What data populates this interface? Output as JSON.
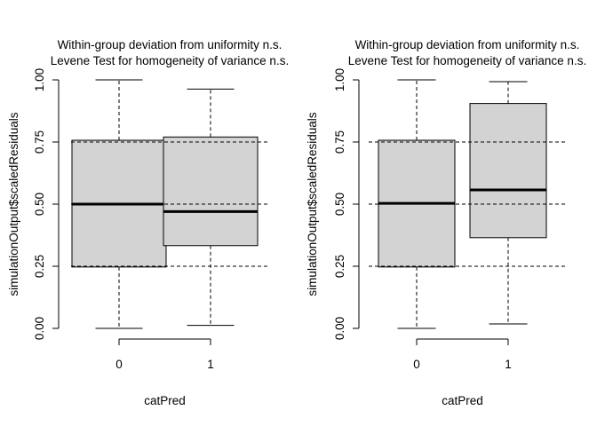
{
  "chart_data": [
    {
      "type": "boxplot",
      "title_line1": "Within-group deviation from uniformity n.s.",
      "title_line2": "Levene Test for homogeneity of variance n.s.",
      "xlabel": "catPred",
      "ylabel": "simulationOutput$scaledResiduals",
      "ylim": [
        0,
        1
      ],
      "yticks": [
        "0.00",
        "0.25",
        "0.50",
        "0.75",
        "1.00"
      ],
      "reference_lines": [
        0.25,
        0.5,
        0.75
      ],
      "categories": [
        "0",
        "1"
      ],
      "boxes": [
        {
          "min": 0.0,
          "q1": 0.247,
          "median": 0.5,
          "q3": 0.757,
          "max": 1.0
        },
        {
          "min": 0.012,
          "q1": 0.333,
          "median": 0.47,
          "q3": 0.77,
          "max": 0.963
        }
      ]
    },
    {
      "type": "boxplot",
      "title_line1": "Within-group deviation from uniformity n.s.",
      "title_line2": "Levene Test for homogeneity of variance n.s.",
      "xlabel": "catPred",
      "ylabel": "simulationOutput$scaledResiduals",
      "ylim": [
        0,
        1
      ],
      "yticks": [
        "0.00",
        "0.25",
        "0.50",
        "0.75",
        "1.00"
      ],
      "reference_lines": [
        0.25,
        0.5,
        0.75
      ],
      "categories": [
        "0",
        "1"
      ],
      "boxes": [
        {
          "min": 0.0,
          "q1": 0.247,
          "median": 0.503,
          "q3": 0.757,
          "max": 1.0
        },
        {
          "min": 0.018,
          "q1": 0.365,
          "median": 0.557,
          "q3": 0.905,
          "max": 0.993
        }
      ]
    }
  ]
}
